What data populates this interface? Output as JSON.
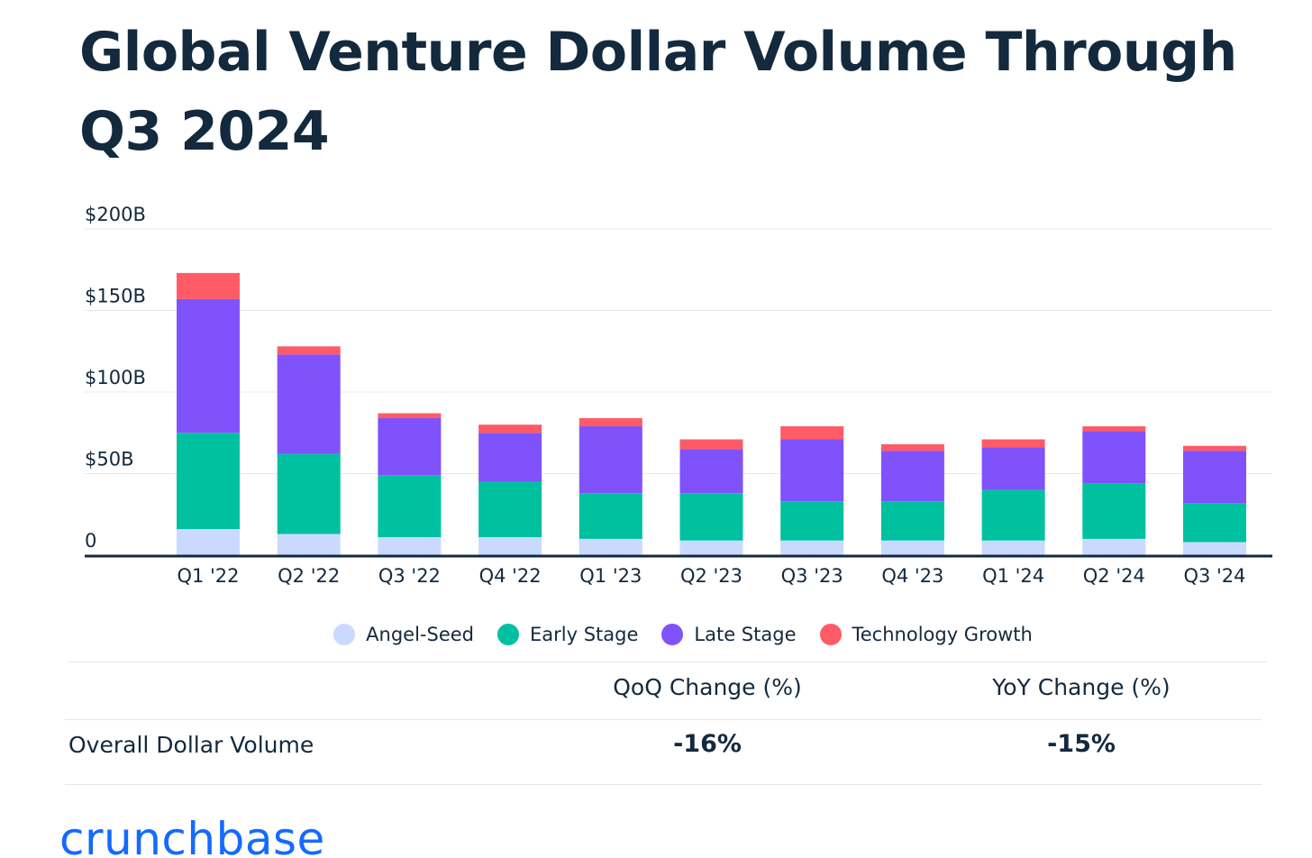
{
  "chart_data": {
    "type": "bar",
    "stacked": true,
    "title": "Global Venture Dollar Volume Through Q3 2024",
    "categories": [
      "Q1 '22",
      "Q2 '22",
      "Q3 '22",
      "Q4 '22",
      "Q1 '23",
      "Q2 '23",
      "Q3 '23",
      "Q4 '23",
      "Q1 '24",
      "Q2 '24",
      "Q3 '24"
    ],
    "series": [
      {
        "name": "Angel-Seed",
        "color": "#c9dafe",
        "values": [
          16,
          13,
          11,
          11,
          10,
          9,
          9,
          9,
          9,
          10,
          8
        ]
      },
      {
        "name": "Early Stage",
        "color": "#00c19f",
        "values": [
          59,
          49,
          38,
          34,
          28,
          29,
          24,
          24,
          31,
          34,
          24
        ]
      },
      {
        "name": "Late Stage",
        "color": "#8052fc",
        "values": [
          82,
          61,
          35,
          30,
          41,
          27,
          38,
          31,
          26,
          32,
          32
        ]
      },
      {
        "name": "Technology Growth",
        "color": "#fe5b67",
        "values": [
          16,
          5,
          3,
          5,
          5,
          6,
          8,
          4,
          5,
          3,
          3
        ]
      }
    ],
    "y_ticks": [
      "0",
      "$50B",
      "$100B",
      "$150B",
      "$200B"
    ],
    "ylim": [
      0,
      200
    ],
    "grid": true,
    "legend_position": "bottom",
    "xlabel": "",
    "ylabel": ""
  },
  "table": {
    "headers": [
      "QoQ Change (%)",
      "YoY Change (%)"
    ],
    "row_label": "Overall Dollar Volume",
    "values": [
      "-16%",
      "-15%"
    ]
  },
  "logo_text": "crunchbase"
}
